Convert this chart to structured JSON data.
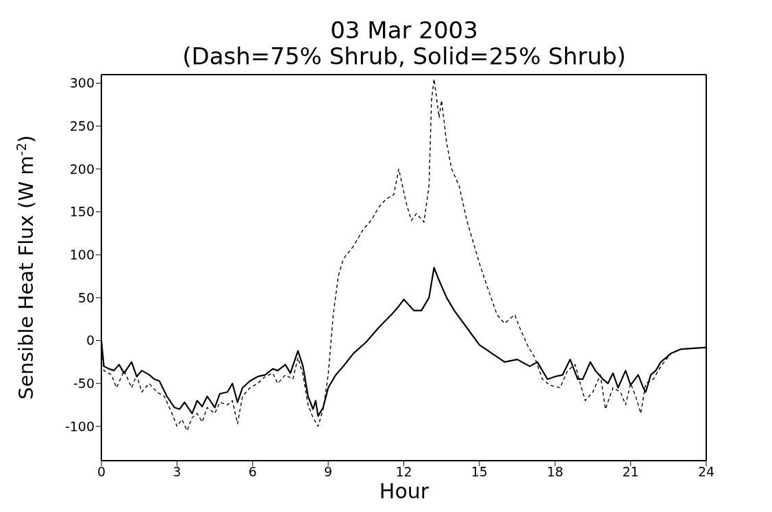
{
  "chart_data": {
    "type": "line",
    "title": "03 Mar 2003",
    "subtitle": "(Dash=75% Shrub, Solid=25% Shrub)",
    "xlabel": "Hour",
    "ylabel": "Sensible Heat Flux (W m$^{-2}$)",
    "xlim": [
      0,
      24
    ],
    "xticks": [
      0,
      3,
      6,
      9,
      12,
      15,
      18,
      21,
      24
    ],
    "ylim": [
      -140,
      310
    ],
    "yticks": [
      -100,
      -50,
      0,
      50,
      100,
      150,
      200,
      250,
      300
    ],
    "marker": "none",
    "series": [
      {
        "color": "#000000",
        "line_style": "dashed",
        "x": [
          0,
          0.1,
          0.4,
          0.6,
          0.9,
          1.2,
          1.4,
          1.6,
          1.9,
          2.2,
          2.5,
          2.8,
          3.0,
          3.2,
          3.4,
          3.6,
          3.8,
          4.0,
          4.2,
          4.5,
          4.7,
          5.0,
          5.2,
          5.4,
          5.6,
          5.9,
          6.2,
          6.5,
          6.8,
          7.0,
          7.3,
          7.6,
          7.8,
          8.0,
          8.2,
          8.4,
          8.6,
          8.8,
          9.0,
          9.2,
          9.4,
          9.6,
          10.0,
          10.4,
          10.7,
          11.0,
          11.3,
          11.6,
          11.8,
          12.1,
          12.3,
          12.5,
          12.8,
          13.0,
          13.1,
          13.2,
          13.4,
          13.5,
          13.7,
          13.9,
          14.2,
          14.5,
          14.7,
          15.0,
          15.4,
          15.7,
          16.0,
          16.4,
          16.6,
          16.9,
          17.2,
          17.5,
          17.8,
          18.2,
          18.5,
          18.8,
          19.0,
          19.2,
          19.5,
          19.8,
          20.0,
          20.3,
          20.6,
          20.8,
          21.0,
          21.2,
          21.4,
          21.6,
          21.9,
          22.2,
          22.6,
          23.0,
          24
        ],
        "values": [
          -5,
          -35,
          -40,
          -55,
          -35,
          -55,
          -40,
          -60,
          -50,
          -60,
          -65,
          -85,
          -100,
          -92,
          -105,
          -90,
          -85,
          -95,
          -78,
          -85,
          -72,
          -75,
          -70,
          -97,
          -65,
          -55,
          -50,
          -42,
          -38,
          -50,
          -40,
          -45,
          -20,
          -40,
          -75,
          -90,
          -100,
          -80,
          -40,
          30,
          75,
          95,
          110,
          130,
          140,
          155,
          165,
          170,
          200,
          160,
          140,
          148,
          138,
          180,
          280,
          305,
          260,
          280,
          230,
          200,
          180,
          140,
          120,
          90,
          55,
          30,
          20,
          30,
          15,
          -5,
          -20,
          -45,
          -52,
          -55,
          -35,
          -28,
          -50,
          -70,
          -60,
          -40,
          -80,
          -55,
          -60,
          -75,
          -50,
          -65,
          -85,
          -50,
          -45,
          -30,
          -15,
          -10,
          -8
        ]
      },
      {
        "color": "#000000",
        "line_style": "solid",
        "x": [
          0,
          0.1,
          0.3,
          0.5,
          0.7,
          0.9,
          1.2,
          1.4,
          1.6,
          1.9,
          2.1,
          2.3,
          2.6,
          2.9,
          3.1,
          3.3,
          3.6,
          3.8,
          4.0,
          4.2,
          4.5,
          4.7,
          5.0,
          5.2,
          5.4,
          5.6,
          5.9,
          6.2,
          6.5,
          6.8,
          7.0,
          7.3,
          7.5,
          7.8,
          8.0,
          8.2,
          8.4,
          8.5,
          8.6,
          8.8,
          9.0,
          9.3,
          9.6,
          10.0,
          10.5,
          11.0,
          11.5,
          11.8,
          12.0,
          12.4,
          12.7,
          13.0,
          13.2,
          13.4,
          13.7,
          14.0,
          14.5,
          15.0,
          15.5,
          16.0,
          16.5,
          17.0,
          17.3,
          17.7,
          18.0,
          18.3,
          18.6,
          18.9,
          19.1,
          19.4,
          19.6,
          19.9,
          20.1,
          20.3,
          20.5,
          20.8,
          21.0,
          21.3,
          21.5,
          21.6,
          21.8,
          22.0,
          22.2,
          22.6,
          23.0,
          24
        ],
        "values": [
          0,
          -30,
          -33,
          -35,
          -28,
          -38,
          -25,
          -42,
          -35,
          -40,
          -45,
          -47,
          -65,
          -78,
          -80,
          -72,
          -85,
          -70,
          -77,
          -65,
          -78,
          -62,
          -60,
          -50,
          -72,
          -55,
          -47,
          -42,
          -40,
          -33,
          -35,
          -28,
          -38,
          -12,
          -30,
          -65,
          -80,
          -70,
          -88,
          -78,
          -55,
          -40,
          -30,
          -15,
          -2,
          15,
          30,
          40,
          48,
          35,
          35,
          50,
          85,
          70,
          50,
          35,
          15,
          -5,
          -15,
          -25,
          -22,
          -30,
          -25,
          -45,
          -42,
          -40,
          -22,
          -45,
          -45,
          -25,
          -35,
          -45,
          -50,
          -38,
          -55,
          -35,
          -52,
          -40,
          -55,
          -60,
          -40,
          -35,
          -25,
          -15,
          -10,
          -8
        ]
      }
    ]
  }
}
